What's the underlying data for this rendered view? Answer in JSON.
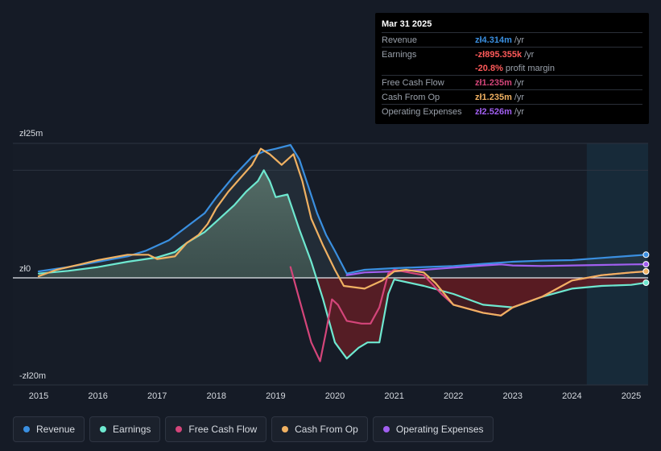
{
  "tooltip": {
    "date": "Mar 31 2025",
    "rows": [
      {
        "label": "Revenue",
        "value": "zł4.314m",
        "unit": "/yr",
        "color": "#3a8fe0"
      },
      {
        "label": "Earnings",
        "value": "-zł895.355k",
        "unit": "/yr",
        "color": "#ff5a5a"
      },
      {
        "label": "",
        "value": "-20.8%",
        "unit": "profit margin",
        "color": "#ff5a5a"
      },
      {
        "label": "Free Cash Flow",
        "value": "zł1.235m",
        "unit": "/yr",
        "color": "#d4457a"
      },
      {
        "label": "Cash From Op",
        "value": "zł1.235m",
        "unit": "/yr",
        "color": "#f0b162"
      },
      {
        "label": "Operating Expenses",
        "value": "zł2.526m",
        "unit": "/yr",
        "color": "#a15ff0"
      }
    ]
  },
  "legend": [
    {
      "label": "Revenue",
      "color": "#3a8fe0"
    },
    {
      "label": "Earnings",
      "color": "#6ee8d0"
    },
    {
      "label": "Free Cash Flow",
      "color": "#d4457a"
    },
    {
      "label": "Cash From Op",
      "color": "#f0b162"
    },
    {
      "label": "Operating Expenses",
      "color": "#a15ff0"
    }
  ],
  "chart_data": {
    "type": "line",
    "title": "",
    "xlabel": "",
    "ylabel": "",
    "ylim": [
      -20,
      25
    ],
    "y_tick_labels": [
      "zł25m",
      "zł0",
      "-zł20m"
    ],
    "x_tick_labels": [
      "2015",
      "2016",
      "2017",
      "2018",
      "2019",
      "2020",
      "2021",
      "2022",
      "2023",
      "2024",
      "2025"
    ],
    "x_range": [
      2014.85,
      2025.25
    ],
    "forecast_start": 2024.25,
    "series": [
      {
        "name": "Revenue",
        "color": "#3a8fe0",
        "points": [
          [
            2015.0,
            1.2
          ],
          [
            2015.5,
            2.0
          ],
          [
            2016.0,
            3.0
          ],
          [
            2016.5,
            4.0
          ],
          [
            2016.8,
            5.0
          ],
          [
            2017.2,
            7.0
          ],
          [
            2017.5,
            9.5
          ],
          [
            2017.8,
            12.0
          ],
          [
            2018.0,
            15.0
          ],
          [
            2018.3,
            19.0
          ],
          [
            2018.6,
            22.5
          ],
          [
            2018.8,
            23.5
          ],
          [
            2019.0,
            24.0
          ],
          [
            2019.25,
            24.7
          ],
          [
            2019.4,
            22.0
          ],
          [
            2019.55,
            17.0
          ],
          [
            2019.7,
            12.0
          ],
          [
            2019.85,
            8.0
          ],
          [
            2020.0,
            5.0
          ],
          [
            2020.2,
            0.8
          ],
          [
            2020.5,
            1.5
          ],
          [
            2021.0,
            1.8
          ],
          [
            2021.5,
            2.0
          ],
          [
            2022.0,
            2.2
          ],
          [
            2022.5,
            2.6
          ],
          [
            2023.0,
            3.0
          ],
          [
            2023.5,
            3.2
          ],
          [
            2024.0,
            3.3
          ],
          [
            2024.5,
            3.7
          ],
          [
            2025.0,
            4.1
          ],
          [
            2025.25,
            4.3
          ]
        ]
      },
      {
        "name": "Earnings",
        "color": "#6ee8d0",
        "points": [
          [
            2015.0,
            0.8
          ],
          [
            2015.5,
            1.3
          ],
          [
            2016.0,
            2.0
          ],
          [
            2016.5,
            3.0
          ],
          [
            2017.0,
            3.8
          ],
          [
            2017.3,
            4.8
          ],
          [
            2017.5,
            6.5
          ],
          [
            2017.8,
            8.5
          ],
          [
            2018.0,
            10.5
          ],
          [
            2018.3,
            13.5
          ],
          [
            2018.5,
            16.0
          ],
          [
            2018.7,
            18.0
          ],
          [
            2018.8,
            20.0
          ],
          [
            2018.9,
            18.0
          ],
          [
            2019.0,
            15.0
          ],
          [
            2019.2,
            15.5
          ],
          [
            2019.4,
            9.0
          ],
          [
            2019.6,
            3.0
          ],
          [
            2019.8,
            -4.0
          ],
          [
            2020.0,
            -12.0
          ],
          [
            2020.2,
            -15.0
          ],
          [
            2020.4,
            -13.0
          ],
          [
            2020.55,
            -12.0
          ],
          [
            2020.75,
            -12.0
          ],
          [
            2020.9,
            -3.0
          ],
          [
            2021.0,
            -0.3
          ],
          [
            2021.5,
            -1.5
          ],
          [
            2022.0,
            -3.0
          ],
          [
            2022.5,
            -5.0
          ],
          [
            2023.0,
            -5.5
          ],
          [
            2023.5,
            -3.5
          ],
          [
            2024.0,
            -2.0
          ],
          [
            2024.5,
            -1.5
          ],
          [
            2025.0,
            -1.3
          ],
          [
            2025.25,
            -0.9
          ]
        ]
      },
      {
        "name": "Free Cash Flow",
        "color": "#d4457a",
        "points": [
          [
            2019.25,
            2.0
          ],
          [
            2019.4,
            -4.0
          ],
          [
            2019.6,
            -12.0
          ],
          [
            2019.75,
            -15.5
          ],
          [
            2019.85,
            -10.0
          ],
          [
            2019.95,
            -4.0
          ],
          [
            2020.05,
            -5.0
          ],
          [
            2020.2,
            -8.0
          ],
          [
            2020.45,
            -8.5
          ],
          [
            2020.6,
            -8.5
          ],
          [
            2020.75,
            -5.5
          ],
          [
            2020.9,
            0.8
          ],
          [
            2021.0,
            1.5
          ],
          [
            2021.5,
            0.5
          ],
          [
            2021.8,
            -3.0
          ],
          [
            2022.0,
            -5.0
          ],
          [
            2022.5,
            -6.5
          ],
          [
            2022.8,
            -7.0
          ],
          [
            2023.0,
            -5.5
          ],
          [
            2023.5,
            -3.5
          ],
          [
            2024.0,
            -0.5
          ],
          [
            2024.5,
            0.5
          ],
          [
            2025.0,
            1.0
          ],
          [
            2025.25,
            1.2
          ]
        ]
      },
      {
        "name": "Cash From Op",
        "color": "#f0b162",
        "points": [
          [
            2015.0,
            0.3
          ],
          [
            2015.3,
            1.5
          ],
          [
            2015.7,
            2.5
          ],
          [
            2016.0,
            3.3
          ],
          [
            2016.5,
            4.3
          ],
          [
            2016.85,
            4.3
          ],
          [
            2017.0,
            3.5
          ],
          [
            2017.3,
            4.0
          ],
          [
            2017.5,
            6.5
          ],
          [
            2017.7,
            8.0
          ],
          [
            2017.85,
            10.0
          ],
          [
            2018.0,
            13.0
          ],
          [
            2018.2,
            16.0
          ],
          [
            2018.4,
            18.5
          ],
          [
            2018.6,
            21.0
          ],
          [
            2018.75,
            24.0
          ],
          [
            2018.9,
            23.0
          ],
          [
            2019.0,
            22.0
          ],
          [
            2019.1,
            21.0
          ],
          [
            2019.3,
            23.0
          ],
          [
            2019.45,
            18.0
          ],
          [
            2019.6,
            11.0
          ],
          [
            2019.8,
            6.0
          ],
          [
            2020.0,
            1.5
          ],
          [
            2020.15,
            -1.5
          ],
          [
            2020.5,
            -2.0
          ],
          [
            2020.8,
            -0.5
          ],
          [
            2021.0,
            1.2
          ],
          [
            2021.2,
            1.5
          ],
          [
            2021.5,
            1.0
          ],
          [
            2021.7,
            -1.0
          ],
          [
            2022.0,
            -5.0
          ],
          [
            2022.5,
            -6.5
          ],
          [
            2022.8,
            -7.0
          ],
          [
            2023.0,
            -5.5
          ],
          [
            2023.5,
            -3.5
          ],
          [
            2024.0,
            -0.5
          ],
          [
            2024.5,
            0.5
          ],
          [
            2025.0,
            1.0
          ],
          [
            2025.25,
            1.2
          ]
        ]
      },
      {
        "name": "Operating Expenses",
        "color": "#a15ff0",
        "points": [
          [
            2020.2,
            0.5
          ],
          [
            2020.5,
            1.0
          ],
          [
            2021.0,
            1.2
          ],
          [
            2021.5,
            1.5
          ],
          [
            2022.0,
            1.9
          ],
          [
            2022.5,
            2.3
          ],
          [
            2022.8,
            2.5
          ],
          [
            2023.0,
            2.3
          ],
          [
            2023.5,
            2.2
          ],
          [
            2024.0,
            2.3
          ],
          [
            2024.5,
            2.4
          ],
          [
            2025.0,
            2.5
          ],
          [
            2025.25,
            2.526
          ]
        ]
      }
    ]
  }
}
